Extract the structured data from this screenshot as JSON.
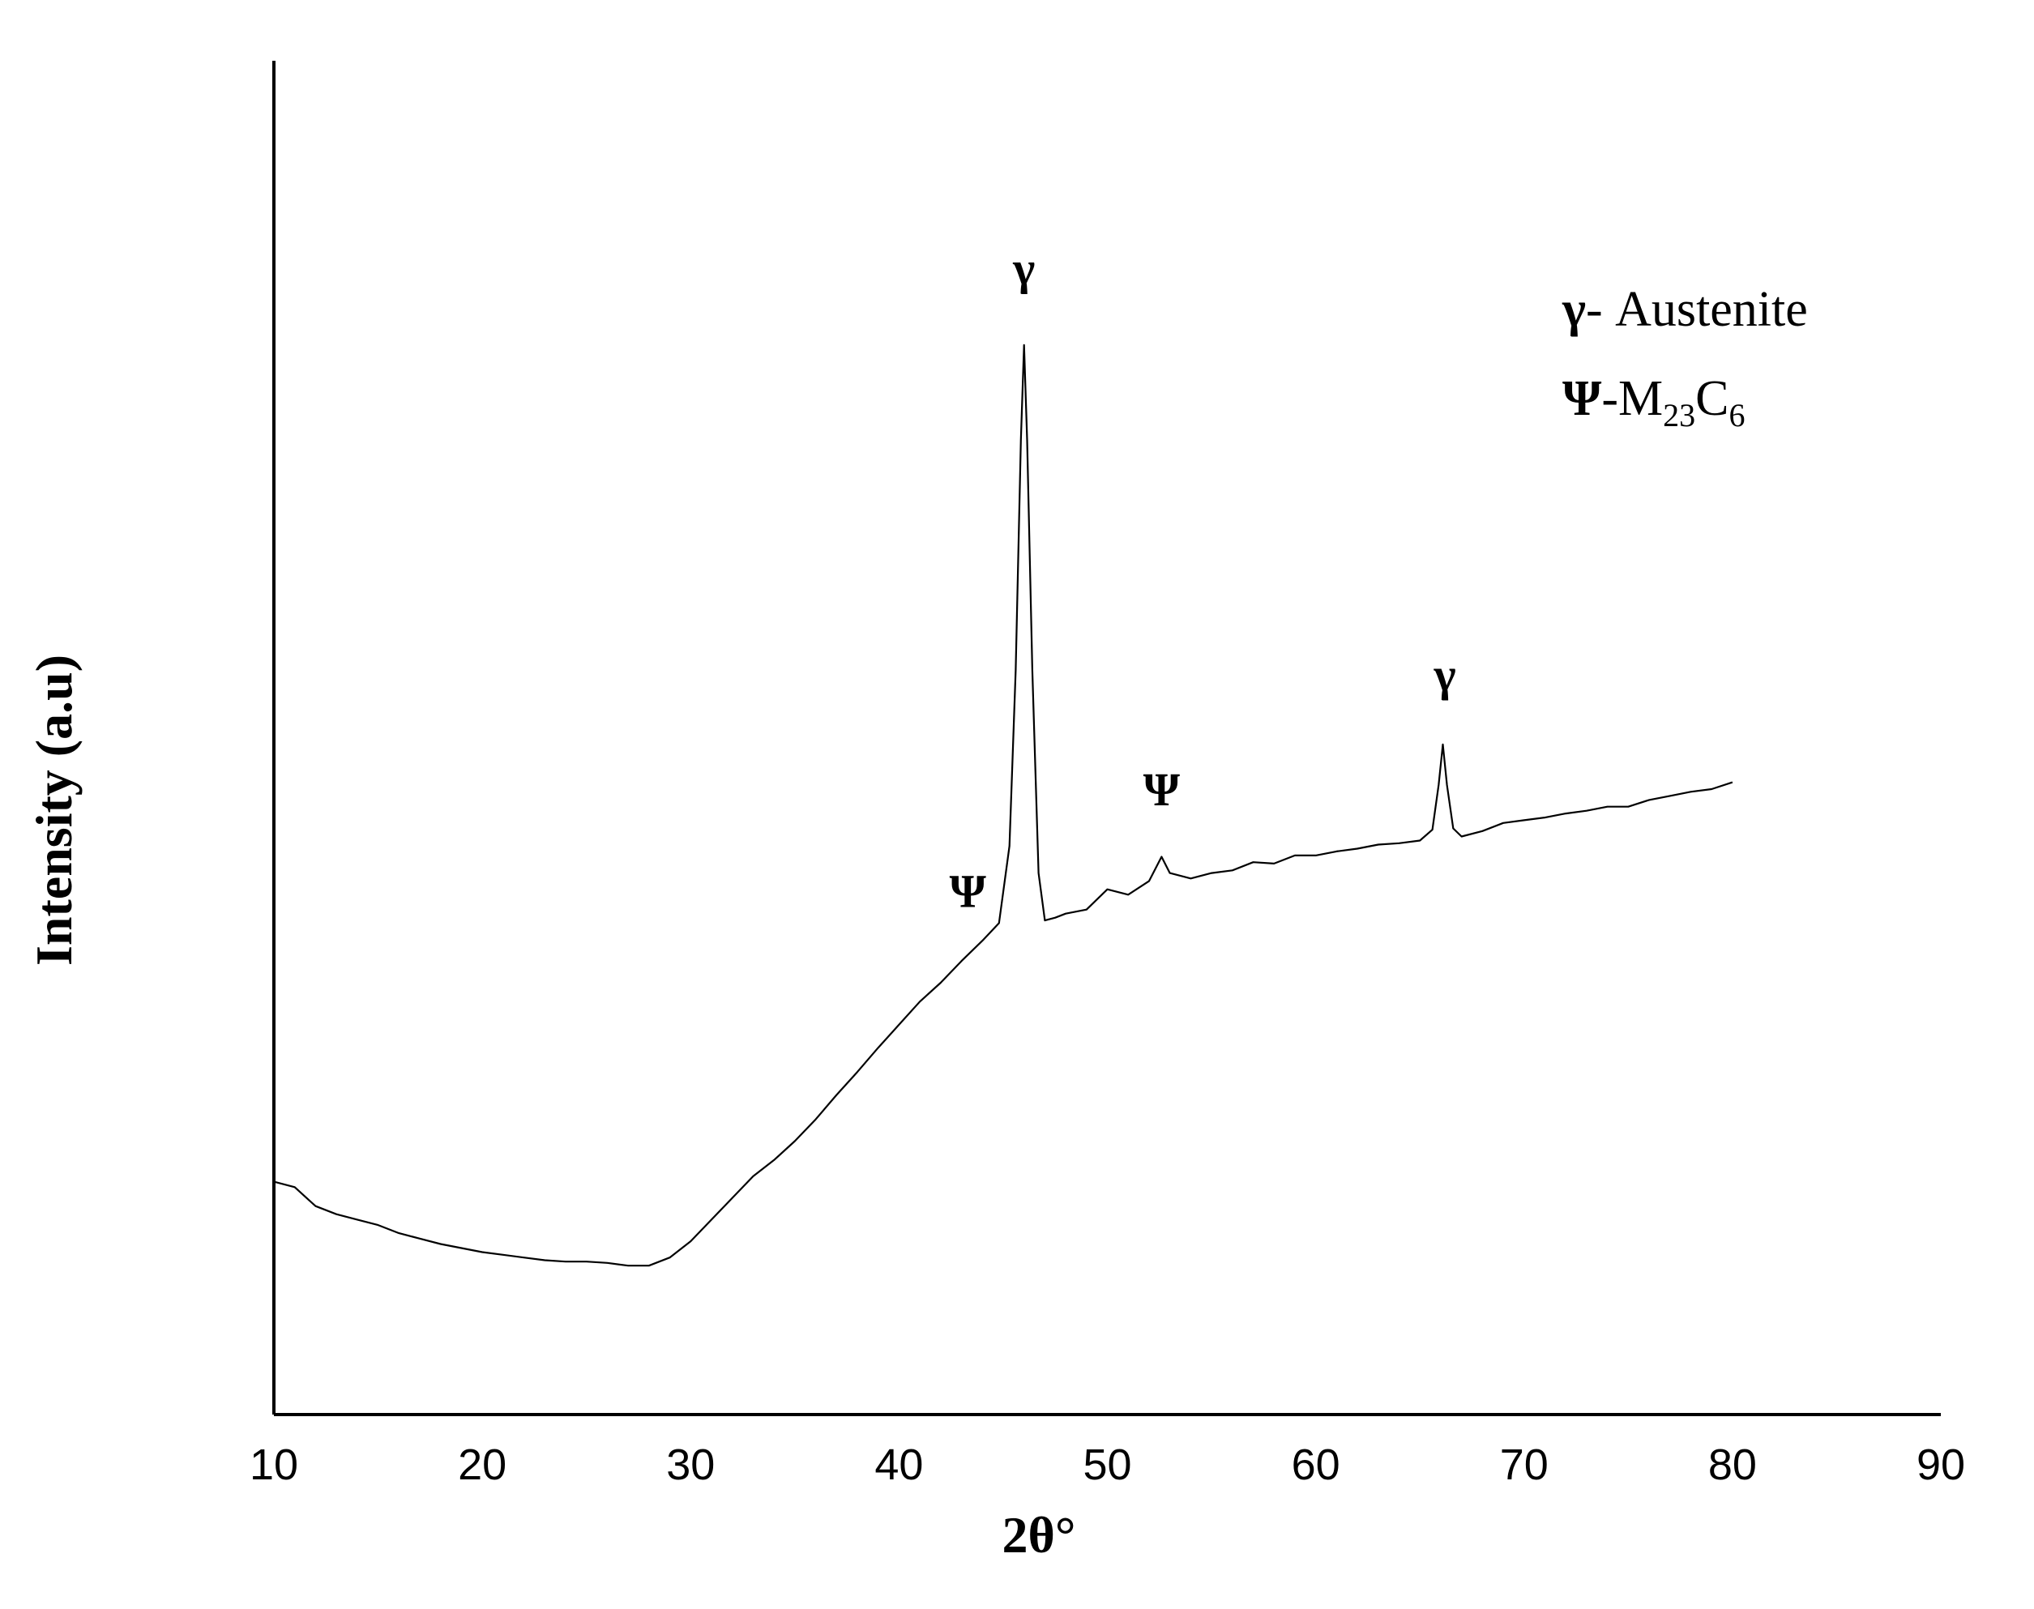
{
  "chart_data": {
    "type": "line",
    "title": "",
    "xlabel": "2θ°",
    "ylabel": "Intensity (a.u)",
    "xlim": [
      10,
      90
    ],
    "ylim": [
      0,
      100
    ],
    "x_ticks": [
      "10",
      "20",
      "30",
      "40",
      "50",
      "60",
      "70",
      "80",
      "90"
    ],
    "y_ticks_shown": false,
    "grid": false,
    "legend_position": "top-right",
    "legend": [
      {
        "symbol": "γ",
        "text": "- Austenite"
      },
      {
        "symbol": "Ψ",
        "text": "-M",
        "sub1": "23",
        "mid": "C",
        "sub2": "6"
      }
    ],
    "series": [
      {
        "color": "#000000",
        "points": [
          [
            10,
            17.2
          ],
          [
            11,
            16.8
          ],
          [
            12,
            15.4
          ],
          [
            13,
            14.8
          ],
          [
            14,
            14.4
          ],
          [
            15,
            14.0
          ],
          [
            16,
            13.4
          ],
          [
            17,
            13.0
          ],
          [
            18,
            12.6
          ],
          [
            19,
            12.3
          ],
          [
            20,
            12.0
          ],
          [
            21,
            11.8
          ],
          [
            22,
            11.6
          ],
          [
            23,
            11.4
          ],
          [
            24,
            11.3
          ],
          [
            25,
            11.3
          ],
          [
            26,
            11.2
          ],
          [
            27,
            11.0
          ],
          [
            28,
            11.0
          ],
          [
            29,
            11.6
          ],
          [
            30,
            12.8
          ],
          [
            31,
            14.4
          ],
          [
            32,
            16.0
          ],
          [
            33,
            17.6
          ],
          [
            34,
            18.8
          ],
          [
            35,
            20.2
          ],
          [
            36,
            21.8
          ],
          [
            37,
            23.6
          ],
          [
            38,
            25.3
          ],
          [
            39,
            27.1
          ],
          [
            40,
            28.8
          ],
          [
            41,
            30.5
          ],
          [
            42,
            31.9
          ],
          [
            43,
            33.5
          ],
          [
            44,
            35.0
          ],
          [
            44.8,
            36.3
          ],
          [
            45.3,
            42.0
          ],
          [
            45.6,
            55.0
          ],
          [
            45.85,
            72.0
          ],
          [
            46.0,
            79.0
          ],
          [
            46.15,
            72.0
          ],
          [
            46.4,
            55.0
          ],
          [
            46.7,
            40.0
          ],
          [
            47.0,
            36.5
          ],
          [
            47.5,
            36.7
          ],
          [
            48,
            37.0
          ],
          [
            49,
            37.3
          ],
          [
            50,
            38.8
          ],
          [
            51,
            38.4
          ],
          [
            52,
            39.4
          ],
          [
            52.6,
            41.2
          ],
          [
            53,
            40.0
          ],
          [
            54,
            39.6
          ],
          [
            55,
            40.0
          ],
          [
            56,
            40.2
          ],
          [
            57,
            40.8
          ],
          [
            58,
            40.7
          ],
          [
            59,
            41.3
          ],
          [
            60,
            41.3
          ],
          [
            61,
            41.6
          ],
          [
            62,
            41.8
          ],
          [
            63,
            42.1
          ],
          [
            64,
            42.2
          ],
          [
            65,
            42.4
          ],
          [
            65.6,
            43.2
          ],
          [
            65.9,
            46.5
          ],
          [
            66.1,
            49.5
          ],
          [
            66.3,
            46.5
          ],
          [
            66.6,
            43.3
          ],
          [
            67,
            42.7
          ],
          [
            68,
            43.1
          ],
          [
            69,
            43.7
          ],
          [
            70,
            43.9
          ],
          [
            71,
            44.1
          ],
          [
            72,
            44.4
          ],
          [
            73,
            44.6
          ],
          [
            74,
            44.9
          ],
          [
            75,
            44.9
          ],
          [
            76,
            45.4
          ],
          [
            77,
            45.7
          ],
          [
            78,
            46.0
          ],
          [
            79,
            46.2
          ],
          [
            80,
            46.7
          ]
        ]
      }
    ],
    "annotations": [
      {
        "text": "γ",
        "x": 46.0,
        "y": 83.5
      },
      {
        "text": "Ψ",
        "x": 43.3,
        "y": 37.5
      },
      {
        "text": "Ψ",
        "x": 52.6,
        "y": 45.0
      },
      {
        "text": "γ",
        "x": 66.2,
        "y": 53.5
      }
    ]
  }
}
